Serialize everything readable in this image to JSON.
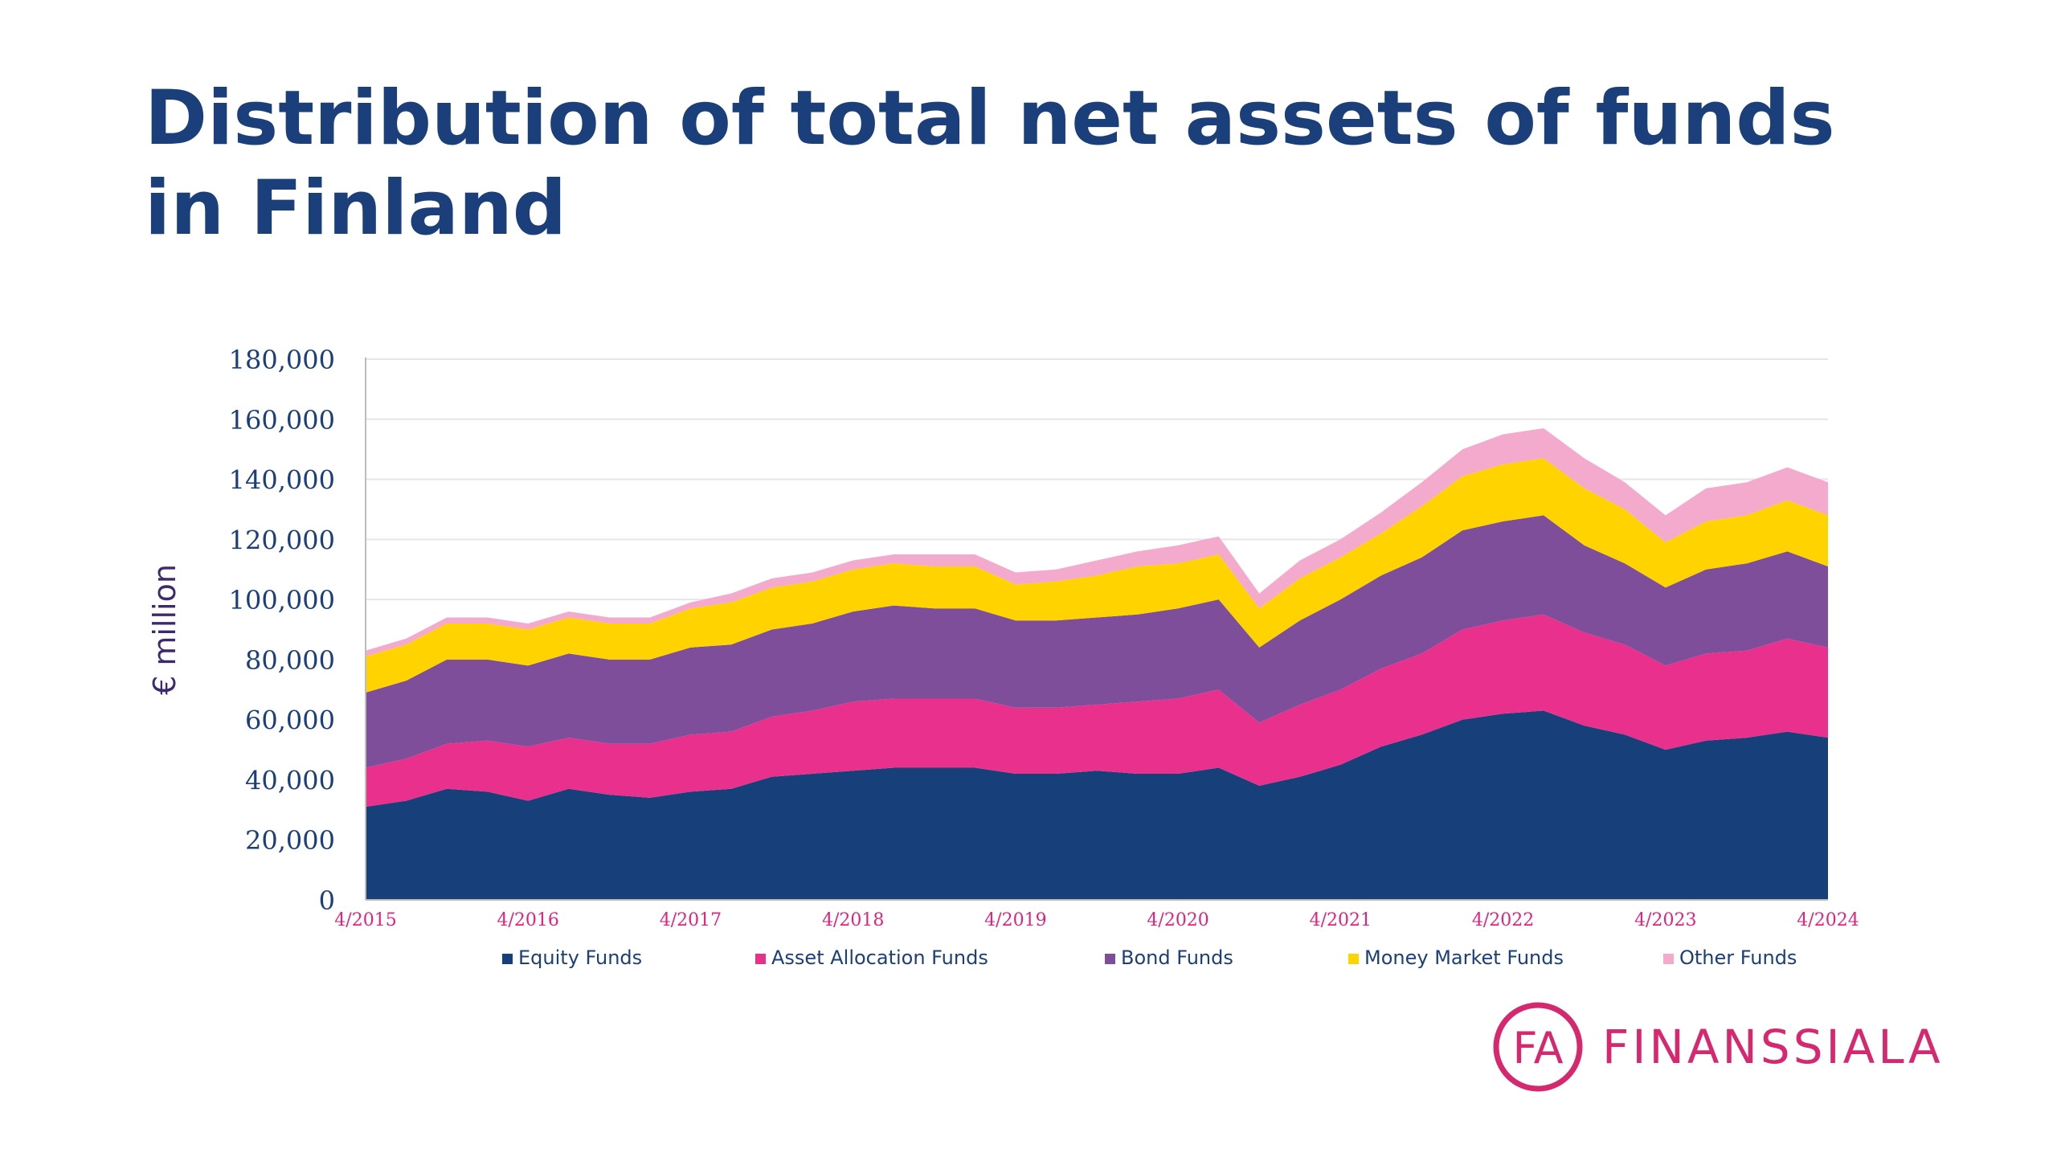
{
  "page": {
    "title": "Distribution of total net assets of funds in Finland",
    "logo_mark": "FA",
    "logo_text": "FINANSSIALA"
  },
  "colors": {
    "title": "#1b3f7a",
    "axis_text": "#1b3f7a",
    "x_tick_text": "#e0237e",
    "ylabel": "#3d2a6e",
    "logo": "#d6286f",
    "grid": "#e6e6e6"
  },
  "chart_data": {
    "type": "area",
    "stacked": true,
    "title": "",
    "xlabel": "",
    "ylabel": "€ million",
    "ylim": [
      0,
      180000
    ],
    "yticks": [
      0,
      20000,
      40000,
      60000,
      80000,
      100000,
      120000,
      140000,
      160000,
      180000
    ],
    "ytick_labels": [
      "0",
      "20,000",
      "40,000",
      "60,000",
      "80,000",
      "100,000",
      "120,000",
      "140,000",
      "160,000",
      "180,000"
    ],
    "xtick_labels": [
      "4/2015",
      "4/2016",
      "4/2017",
      "4/2018",
      "4/2019",
      "4/2020",
      "4/2021",
      "4/2022",
      "4/2023",
      "4/2024"
    ],
    "grid": "horizontal",
    "legend_position": "bottom",
    "x": [
      "4/2015",
      "7/2015",
      "10/2015",
      "1/2016",
      "4/2016",
      "7/2016",
      "10/2016",
      "1/2017",
      "4/2017",
      "7/2017",
      "10/2017",
      "1/2018",
      "4/2018",
      "7/2018",
      "10/2018",
      "1/2019",
      "4/2019",
      "7/2019",
      "10/2019",
      "1/2020",
      "4/2020",
      "7/2020",
      "10/2020",
      "1/2021",
      "4/2021",
      "7/2021",
      "10/2021",
      "1/2022",
      "4/2022",
      "7/2022",
      "10/2022",
      "1/2023",
      "4/2023",
      "7/2023",
      "10/2023",
      "1/2024",
      "4/2024"
    ],
    "series": [
      {
        "name": "Equity Funds",
        "color": "#173f7a",
        "values": [
          31000,
          33000,
          37000,
          36000,
          33000,
          37000,
          35000,
          34000,
          36000,
          37000,
          41000,
          42000,
          43000,
          44000,
          44000,
          44000,
          42000,
          42000,
          43000,
          42000,
          42000,
          44000,
          38000,
          41000,
          45000,
          51000,
          55000,
          60000,
          62000,
          63000,
          58000,
          55000,
          50000,
          53000,
          54000,
          56000,
          54000
        ]
      },
      {
        "name": "Asset Allocation Funds",
        "color": "#e8308c",
        "values": [
          13000,
          14000,
          15000,
          17000,
          18000,
          17000,
          17000,
          18000,
          19000,
          19000,
          20000,
          21000,
          23000,
          23000,
          23000,
          23000,
          22000,
          22000,
          22000,
          24000,
          25000,
          26000,
          21000,
          24000,
          25000,
          26000,
          27000,
          30000,
          31000,
          32000,
          31000,
          30000,
          28000,
          29000,
          29000,
          31000,
          30000
        ]
      },
      {
        "name": "Bond Funds",
        "color": "#7e4e9a",
        "values": [
          25000,
          26000,
          28000,
          27000,
          27000,
          28000,
          28000,
          28000,
          29000,
          29000,
          29000,
          29000,
          30000,
          31000,
          30000,
          30000,
          29000,
          29000,
          29000,
          29000,
          30000,
          30000,
          25000,
          28000,
          30000,
          31000,
          32000,
          33000,
          33000,
          33000,
          29000,
          27000,
          26000,
          28000,
          29000,
          29000,
          27000
        ]
      },
      {
        "name": "Money Market Funds",
        "color": "#ffd300",
        "values": [
          12000,
          12000,
          12000,
          12000,
          12000,
          12000,
          12000,
          12000,
          13000,
          14000,
          14000,
          14000,
          14000,
          14000,
          14000,
          14000,
          12000,
          13000,
          14000,
          16000,
          15000,
          15000,
          13000,
          14000,
          14000,
          14000,
          17000,
          18000,
          19000,
          19000,
          19000,
          18000,
          15000,
          16000,
          16000,
          17000,
          17000
        ]
      },
      {
        "name": "Other Funds",
        "color": "#f3aacd",
        "values": [
          2000,
          2000,
          2000,
          2000,
          2000,
          2000,
          2000,
          2000,
          2000,
          3000,
          3000,
          3000,
          3000,
          3000,
          4000,
          4000,
          4000,
          4000,
          5000,
          5000,
          6000,
          6000,
          5000,
          6000,
          6000,
          7000,
          8000,
          9000,
          10000,
          10000,
          10000,
          9000,
          9000,
          11000,
          11000,
          11000,
          11000
        ]
      }
    ]
  }
}
